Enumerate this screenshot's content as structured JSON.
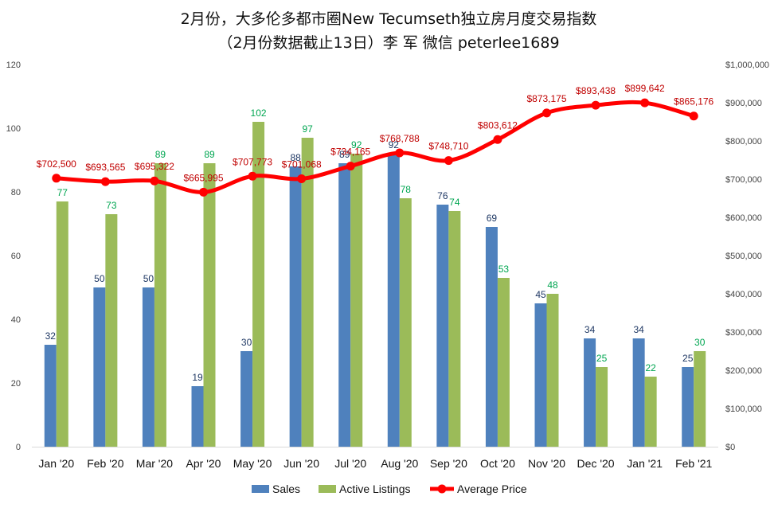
{
  "chart_data": {
    "type": "bar",
    "title": "2月份，大多伦多都市圈New Tecumseth独立房月度交易指数",
    "subtitle": "（2月份数据截止13日）李 军  微信  peterlee1689",
    "categories": [
      "Jan '20",
      "Feb '20",
      "Mar '20",
      "Apr '20",
      "May '20",
      "Jun '20",
      "Jul '20",
      "Aug '20",
      "Sep '20",
      "Oct '20",
      "Nov '20",
      "Dec '20",
      "Jan '21",
      "Feb '21"
    ],
    "series": [
      {
        "name": "Sales",
        "type": "bar",
        "axis": "left",
        "color": "#4f81bd",
        "label_color": "#1f3864",
        "values": [
          32,
          50,
          50,
          19,
          30,
          88,
          89,
          92,
          76,
          69,
          45,
          34,
          34,
          25
        ],
        "labels": [
          "32",
          "50",
          "50",
          "19",
          "30",
          "88",
          "89",
          "92",
          "76",
          "69",
          "45",
          "34",
          "34",
          "25"
        ]
      },
      {
        "name": "Active Listings",
        "type": "bar",
        "axis": "left",
        "color": "#9bbb59",
        "label_color": "#00a651",
        "values": [
          77,
          73,
          89,
          89,
          102,
          97,
          92,
          78,
          74,
          53,
          48,
          25,
          22,
          30
        ],
        "labels": [
          "77",
          "73",
          "89",
          "89",
          "102",
          "97",
          "92",
          "78",
          "74",
          "53",
          "48",
          "25",
          "22",
          "30"
        ]
      },
      {
        "name": "Average Price",
        "type": "line",
        "axis": "right",
        "color": "#ff0000",
        "label_color": "#c00000",
        "values": [
          702500,
          693565,
          695322,
          665995,
          707773,
          701068,
          734165,
          768788,
          748710,
          803612,
          873175,
          893438,
          899642,
          865176
        ],
        "labels": [
          "$702,500",
          "$693,565",
          "$695,322",
          "$665,995",
          "$707,773",
          "$701,068",
          "$734,165",
          "$768,788",
          "$748,710",
          "$803,612",
          "$873,175",
          "$893,438",
          "$899,642",
          "$865,176"
        ]
      }
    ],
    "y_left": {
      "min": 0,
      "max": 120,
      "step": 20,
      "ticks": [
        "0",
        "20",
        "40",
        "60",
        "80",
        "100",
        "120"
      ]
    },
    "y_right": {
      "min": 0,
      "max": 1000000,
      "step": 100000,
      "ticks": [
        "$0",
        "$100,000",
        "$200,000",
        "$300,000",
        "$400,000",
        "$500,000",
        "$600,000",
        "$700,000",
        "$800,000",
        "$900,000",
        "$1,000,000"
      ]
    },
    "grid": false,
    "legend_position": "bottom"
  }
}
